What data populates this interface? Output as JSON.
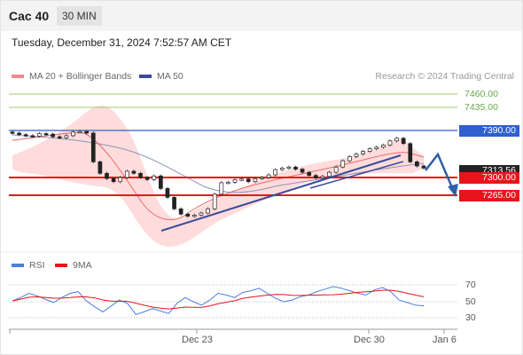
{
  "header": {
    "instrument": "Cac 40",
    "timeframe": "30 MIN"
  },
  "timestamp": "Tuesday, December 31, 2024 7:52:57 AM CET",
  "legend": {
    "ma20": "MA 20 + Bollinger Bands",
    "ma50": "MA 50",
    "credit": "Research © 2024 Trading Central"
  },
  "levels": {
    "r3": "7460.00",
    "r2": "7435.00",
    "r1": "7390.00",
    "last": "7313.56",
    "s1": "7300.00",
    "s2": "7265.00"
  },
  "rsi_legend": {
    "rsi": "RSI",
    "ma": "9MA"
  },
  "colors": {
    "resistance": "#2f5fd0",
    "support": "#e8141c",
    "green_level": "#9ccc6a",
    "bollinger": "#ffd3d3",
    "ma50": "#3a4a9a",
    "rsi": "#4a7fdc",
    "rsi_ma": "#e8141c",
    "up_candle": "#ffffff",
    "down_candle": "#222222"
  },
  "chart_data": [
    {
      "type": "candlestick",
      "title": "Cac 40",
      "x_ticks": [
        "Dec 23",
        "Dec 30",
        "Jan 6"
      ],
      "horizontal_levels": [
        {
          "label": "7460.00",
          "value": 7460,
          "kind": "target"
        },
        {
          "label": "7435.00",
          "value": 7435,
          "kind": "target"
        },
        {
          "label": "7390.00",
          "value": 7390,
          "kind": "resistance"
        },
        {
          "label": "7300.00",
          "value": 7300,
          "kind": "pivot"
        },
        {
          "label": "7265.00",
          "value": 7265,
          "kind": "support"
        }
      ],
      "last_price": 7313.56,
      "close_path_approx": [
        7385,
        7382,
        7380,
        7379,
        7384,
        7383,
        7378,
        7376,
        7380,
        7387,
        7388,
        7385,
        7330,
        7308,
        7298,
        7292,
        7300,
        7312,
        7308,
        7300,
        7296,
        7303,
        7279,
        7262,
        7240,
        7230,
        7226,
        7228,
        7232,
        7240,
        7268,
        7290,
        7291,
        7296,
        7297,
        7292,
        7298,
        7300,
        7305,
        7315,
        7318,
        7320,
        7316,
        7310,
        7304,
        7299,
        7302,
        7310,
        7320,
        7332,
        7340,
        7345,
        7350,
        7355,
        7358,
        7362,
        7370,
        7375,
        7365,
        7330,
        7322,
        7318
      ],
      "projection": "down toward 7265.00"
    },
    {
      "type": "line",
      "title": "RSI",
      "series": [
        {
          "name": "RSI"
        },
        {
          "name": "9MA"
        }
      ],
      "y_ticks": [
        30,
        50,
        70
      ],
      "rsi_approx": [
        51,
        55,
        60,
        57,
        53,
        49,
        55,
        60,
        62,
        51,
        44,
        38,
        45,
        52,
        48,
        35,
        38,
        42,
        39,
        36,
        48,
        55,
        50,
        46,
        52,
        60,
        58,
        55,
        61,
        63,
        66,
        60,
        54,
        50,
        52,
        56,
        58,
        62,
        65,
        68,
        66,
        63,
        60,
        58,
        64,
        67,
        62,
        52,
        49,
        46,
        45
      ]
    }
  ]
}
